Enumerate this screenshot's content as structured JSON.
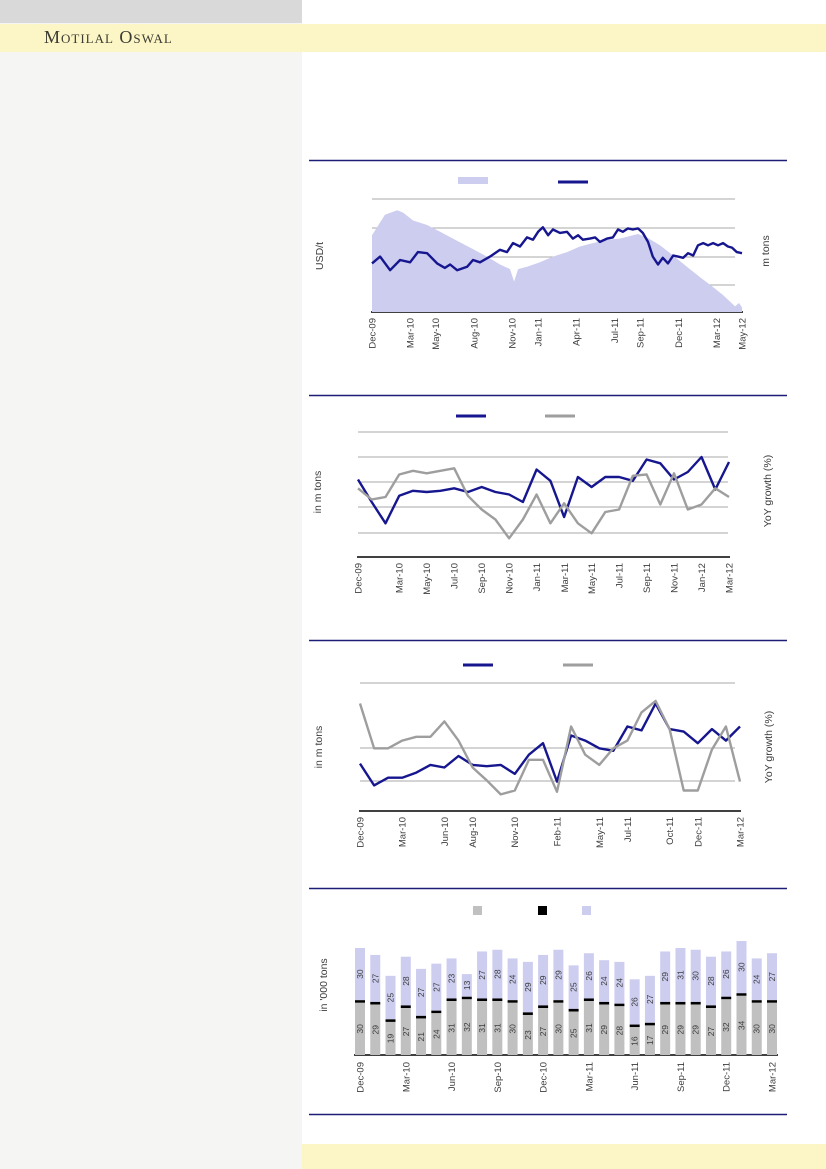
{
  "banner": {
    "brand": "Motilal Oswal"
  },
  "colors": {
    "navy": "#16168f",
    "lavender": "#cdcdf0",
    "gray_line": "#9e9e9e",
    "bar_gray": "#c0c0c0",
    "bar_black": "#000000",
    "banner_yellow": "#fcf5c5",
    "left_panel_gray": "#f5f5f4",
    "top_bar_gray": "#d9d9d9",
    "rule_navy": "#1d1d78",
    "grid_gray": "#a9a9a9",
    "text_gray": "#3c3c3c"
  },
  "chart_data": [
    {
      "type": "area",
      "title": "",
      "ylabel_left": "USD/t",
      "ylabel_right": "m tons",
      "value_scale": "relative-0-100 (y tick numbers not visible in image)",
      "legend": [
        {
          "kind": "area",
          "label": ""
        },
        {
          "kind": "line",
          "label": ""
        }
      ],
      "x_ticks": {
        "labels": [
          "Dec-09",
          "Mar-10",
          "May-10",
          "Aug-10",
          "Nov-10",
          "Jan-11",
          "Apr-11",
          "Jul-11",
          "Sep-11",
          "Dec-11",
          "Mar-12",
          "May-12"
        ],
        "pos": [
          0,
          0.103,
          0.172,
          0.276,
          0.379,
          0.448,
          0.552,
          0.655,
          0.724,
          0.828,
          0.931,
          1
        ]
      },
      "series": [
        {
          "name": "shaded-area",
          "kind": "area",
          "points": [
            [
              0,
              68
            ],
            [
              0.035,
              86
            ],
            [
              0.068,
              90
            ],
            [
              0.084,
              88
            ],
            [
              0.111,
              81
            ],
            [
              0.149,
              77
            ],
            [
              0.184,
              71
            ],
            [
              0.219,
              65
            ],
            [
              0.265,
              57
            ],
            [
              0.311,
              49
            ],
            [
              0.346,
              42
            ],
            [
              0.373,
              38
            ],
            [
              0.384,
              27
            ],
            [
              0.395,
              38
            ],
            [
              0.419,
              40
            ],
            [
              0.454,
              44
            ],
            [
              0.489,
              49
            ],
            [
              0.527,
              53
            ],
            [
              0.562,
              58
            ],
            [
              0.597,
              61
            ],
            [
              0.635,
              64
            ],
            [
              0.67,
              65
            ],
            [
              0.705,
              68
            ],
            [
              0.719,
              69
            ],
            [
              0.743,
              66
            ],
            [
              0.778,
              59
            ],
            [
              0.814,
              50
            ],
            [
              0.851,
              40
            ],
            [
              0.886,
              31
            ],
            [
              0.922,
              22
            ],
            [
              0.949,
              15
            ],
            [
              0.968,
              9
            ],
            [
              0.981,
              5
            ],
            [
              0.992,
              8
            ],
            [
              1,
              4
            ]
          ]
        },
        {
          "name": "price-line",
          "kind": "line",
          "points": [
            [
              0,
              43
            ],
            [
              0.022,
              49
            ],
            [
              0.049,
              37
            ],
            [
              0.076,
              46
            ],
            [
              0.103,
              44
            ],
            [
              0.124,
              53
            ],
            [
              0.149,
              52
            ],
            [
              0.176,
              43
            ],
            [
              0.197,
              39
            ],
            [
              0.211,
              42
            ],
            [
              0.23,
              37
            ],
            [
              0.257,
              40
            ],
            [
              0.273,
              46
            ],
            [
              0.292,
              44
            ],
            [
              0.319,
              49
            ],
            [
              0.346,
              55
            ],
            [
              0.365,
              53
            ],
            [
              0.381,
              61
            ],
            [
              0.4,
              58
            ],
            [
              0.419,
              66
            ],
            [
              0.435,
              64
            ],
            [
              0.449,
              71
            ],
            [
              0.462,
              75
            ],
            [
              0.476,
              68
            ],
            [
              0.489,
              73
            ],
            [
              0.508,
              70
            ],
            [
              0.527,
              71
            ],
            [
              0.543,
              65
            ],
            [
              0.557,
              68
            ],
            [
              0.57,
              64
            ],
            [
              0.589,
              65
            ],
            [
              0.603,
              66
            ],
            [
              0.616,
              62
            ],
            [
              0.635,
              65
            ],
            [
              0.651,
              66
            ],
            [
              0.665,
              73
            ],
            [
              0.678,
              71
            ],
            [
              0.692,
              74
            ],
            [
              0.705,
              73
            ],
            [
              0.719,
              74
            ],
            [
              0.732,
              70
            ],
            [
              0.746,
              62
            ],
            [
              0.759,
              49
            ],
            [
              0.773,
              42
            ],
            [
              0.786,
              48
            ],
            [
              0.8,
              43
            ],
            [
              0.814,
              50
            ],
            [
              0.827,
              49
            ],
            [
              0.841,
              48
            ],
            [
              0.854,
              52
            ],
            [
              0.868,
              50
            ],
            [
              0.881,
              59
            ],
            [
              0.895,
              61
            ],
            [
              0.908,
              59
            ],
            [
              0.922,
              61
            ],
            [
              0.935,
              59
            ],
            [
              0.949,
              61
            ],
            [
              0.962,
              58
            ],
            [
              0.973,
              57
            ],
            [
              0.986,
              53
            ],
            [
              1,
              52
            ]
          ]
        }
      ]
    },
    {
      "type": "line",
      "title": "",
      "ylabel_left": "in m tons",
      "ylabel_right": "YoY growth (%)",
      "value_scale": "relative-0-100 (y tick numbers not visible in image)",
      "legend": [
        {
          "kind": "line",
          "label": ""
        },
        {
          "kind": "line",
          "label": ""
        }
      ],
      "x_ticks": {
        "labels": [
          "Dec-09",
          "Mar-10",
          "May-10",
          "Jul-10",
          "Sep-10",
          "Nov-10",
          "Jan-11",
          "Mar-11",
          "May-11",
          "Jul-11",
          "Sep-11",
          "Nov-11",
          "Jan-12",
          "Mar-12"
        ],
        "pos": [
          0,
          0.111,
          0.185,
          0.259,
          0.333,
          0.407,
          0.481,
          0.556,
          0.63,
          0.704,
          0.778,
          0.852,
          0.926,
          1
        ]
      },
      "series": [
        {
          "name": "navy-line",
          "values": [
            62,
            44,
            27,
            49,
            53,
            52,
            53,
            55,
            52,
            56,
            52,
            50,
            44,
            70,
            61,
            32,
            64,
            56,
            64,
            64,
            61,
            78,
            75,
            62,
            68,
            80,
            54,
            76
          ]
        },
        {
          "name": "gray-line",
          "values": [
            55,
            46,
            48,
            66,
            69,
            67,
            69,
            71,
            49,
            38,
            30,
            15,
            30,
            50,
            27,
            43,
            27,
            19,
            36,
            38,
            65,
            66,
            42,
            67,
            38,
            42,
            55,
            48
          ]
        }
      ]
    },
    {
      "type": "line",
      "title": "",
      "ylabel_left": "in m tons",
      "ylabel_right": "YoY growth (%)",
      "value_scale": "relative-0-100 (y tick numbers not visible in image)",
      "legend": [
        {
          "kind": "line",
          "label": ""
        },
        {
          "kind": "line",
          "label": ""
        }
      ],
      "x_ticks": {
        "labels": [
          "Dec-09",
          "Mar-10",
          "Jun-10",
          "Aug-10",
          "Nov-10",
          "Feb-11",
          "May-11",
          "Jul-11",
          "Oct-11",
          "Dec-11",
          "Mar-12"
        ],
        "pos": [
          0,
          0.111,
          0.222,
          0.296,
          0.407,
          0.519,
          0.63,
          0.704,
          0.815,
          0.889,
          1
        ]
      },
      "series": [
        {
          "name": "navy-line",
          "values": [
            37,
            20,
            26,
            26,
            30,
            36,
            34,
            43,
            36,
            35,
            36,
            29,
            44,
            53,
            23,
            59,
            55,
            49,
            47,
            66,
            63,
            84,
            64,
            62,
            53,
            64,
            55,
            66
          ]
        },
        {
          "name": "gray-line",
          "values": [
            84,
            49,
            49,
            55,
            58,
            58,
            70,
            55,
            34,
            24,
            13,
            16,
            40,
            40,
            15,
            66,
            44,
            36,
            49,
            55,
            77,
            86,
            64,
            16,
            16,
            48,
            66,
            23
          ]
        }
      ]
    },
    {
      "type": "bar",
      "title": "",
      "ylabel_left": "in '000 tons",
      "legend": [
        {
          "kind": "square",
          "label": ""
        },
        {
          "kind": "square",
          "label": ""
        },
        {
          "kind": "square",
          "label": ""
        }
      ],
      "x_ticks": {
        "labels": [
          "Dec-09",
          "Mar-10",
          "Jun-10",
          "Sep-10",
          "Dec-10",
          "Mar-11",
          "Jun-11",
          "Sep-11",
          "Dec-11",
          "Mar-12"
        ],
        "indices": [
          0,
          3,
          6,
          9,
          12,
          15,
          18,
          21,
          24,
          27
        ]
      },
      "stacks": {
        "gray_values": [
          30,
          29,
          19,
          27,
          21,
          24,
          31,
          32,
          31,
          31,
          30,
          23,
          27,
          30,
          25,
          31,
          29,
          28,
          16,
          17,
          29,
          29,
          29,
          27,
          32,
          34,
          30,
          30
        ],
        "black_thickness_units": 1.5,
        "lavender_values": [
          30,
          27,
          25,
          28,
          27,
          27,
          23,
          13,
          27,
          28,
          24,
          29,
          29,
          29,
          25,
          26,
          24,
          24,
          26,
          27,
          29,
          31,
          30,
          28,
          26,
          30,
          24,
          27
        ]
      }
    }
  ]
}
